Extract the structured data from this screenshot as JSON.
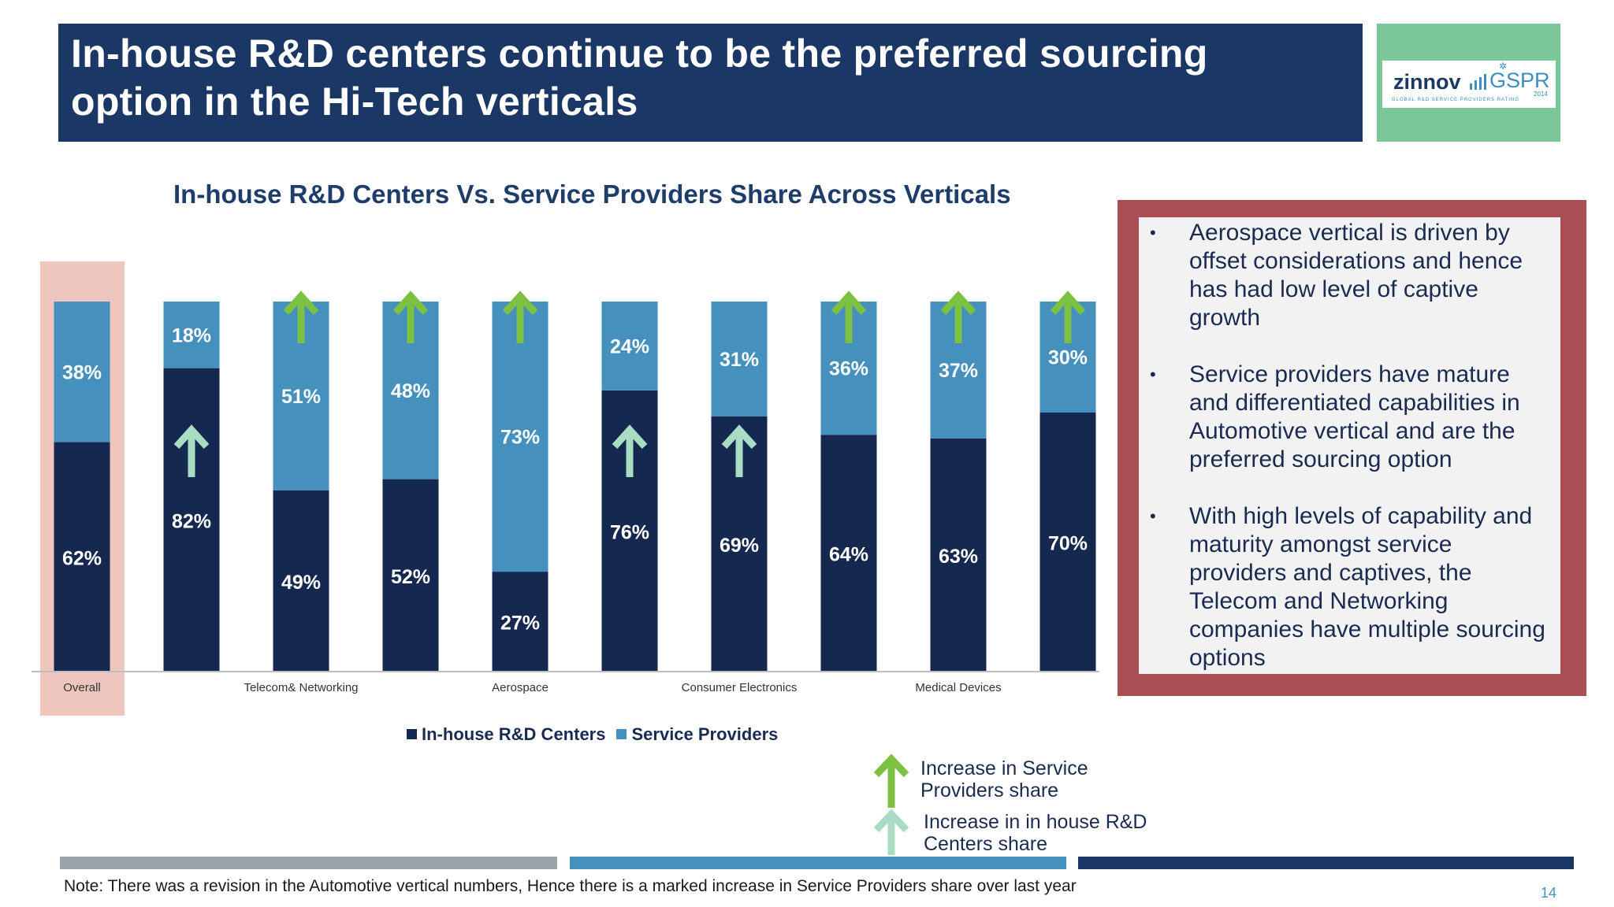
{
  "header": {
    "title_line1": "In-house R&D centers continue to be the preferred sourcing",
    "title_line2": "option in the Hi-Tech verticals"
  },
  "logo": {
    "brand": "zinnov",
    "product": "GSPR",
    "year": "2014",
    "tagline": "GLOBAL R&D SERVICE PROVIDERS RATING"
  },
  "chart_data": {
    "type": "bar",
    "stacked": true,
    "percent_stacked": true,
    "title": "In-house R&D Centers  Vs. Service Providers Share Across Verticals",
    "x_tick_labels": [
      "Overall",
      "Telecom& Networking",
      "Aerospace",
      "Consumer Electronics",
      "Medical Devices"
    ],
    "categories": [
      "Overall",
      "",
      "Telecom& Networking",
      "",
      "Aerospace",
      "",
      "Consumer Electronics",
      "",
      "Medical Devices",
      ""
    ],
    "series": [
      {
        "name": "In-house R&D Centers",
        "color": "#142850",
        "values": [
          62,
          82,
          49,
          52,
          27,
          76,
          69,
          64,
          63,
          70
        ]
      },
      {
        "name": "Service Providers",
        "color": "#4690be",
        "values": [
          38,
          18,
          51,
          48,
          73,
          24,
          31,
          36,
          37,
          30
        ]
      }
    ],
    "value_labels": {
      "in_house": [
        "62%",
        "82%",
        "49%",
        "52%",
        "27%",
        "76%",
        "69%",
        "64%",
        "63%",
        "70%"
      ],
      "service": [
        "38%",
        "18%",
        "51%",
        "48%",
        "73%",
        "24%",
        "31%",
        "36%",
        "37%",
        "30%"
      ]
    },
    "increase_service_providers_share": [
      false,
      false,
      true,
      true,
      true,
      false,
      false,
      true,
      true,
      true
    ],
    "increase_in_house_share": [
      false,
      true,
      false,
      false,
      false,
      true,
      true,
      false,
      false,
      false
    ],
    "ylim": [
      0,
      100
    ],
    "highlighted_category": "Overall",
    "legend_position": "bottom"
  },
  "legend": {
    "in_house": "In-house R&D Centers",
    "service": "Service Providers"
  },
  "colors": {
    "in_house": "#142850",
    "service": "#4690be",
    "arrow_service": "#7cc142",
    "arrow_in_house": "#a8dcc3",
    "title_banner": "#1b3766",
    "side_border": "#a94f53"
  },
  "insights": [
    "Aerospace vertical is driven by offset considerations and hence has had low level of captive growth",
    "Service providers have mature and differentiated capabilities in Automotive vertical and are the preferred sourcing option",
    "With high levels of capability and maturity amongst service providers and captives,  the Telecom and Networking companies have multiple sourcing options"
  ],
  "key": {
    "service_arrow_label_1": "Increase in Service",
    "service_arrow_label_2": "Providers  share",
    "in_house_arrow_label_1": "Increase in in house R&D",
    "in_house_arrow_label_2": "Centers share"
  },
  "footer": {
    "note": "Note: There was a revision in the Automotive vertical numbers, Hence there is a marked increase in Service Providers share over last year",
    "page": "14"
  }
}
